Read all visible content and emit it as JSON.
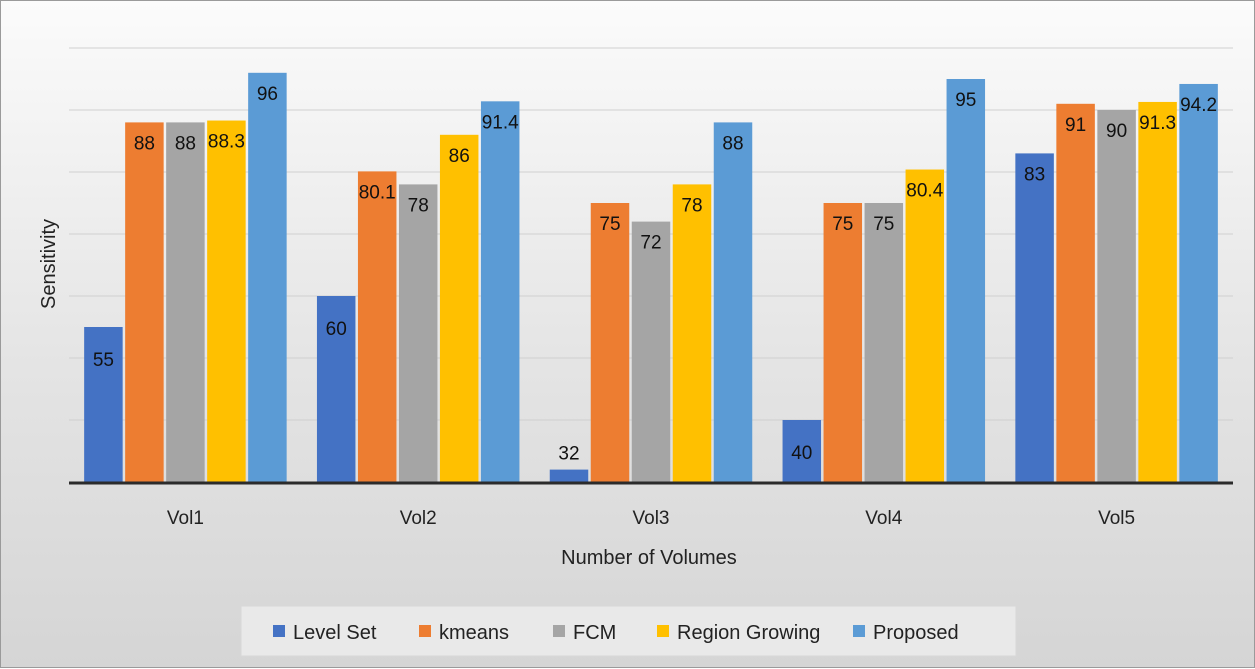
{
  "chart_data": {
    "type": "bar",
    "title": "",
    "xlabel": "Number of Volumes",
    "ylabel": "Sensitivity",
    "categories": [
      "Vol1",
      "Vol2",
      "Vol3",
      "Vol4",
      "Vol5"
    ],
    "ylim": [
      30,
      100
    ],
    "grid": true,
    "legend_position": "bottom",
    "series": [
      {
        "name": "Level Set",
        "color": "#4472C4",
        "values": [
          55,
          60,
          32,
          40,
          83
        ]
      },
      {
        "name": "kmeans",
        "color": "#ED7D31",
        "values": [
          88,
          80.1,
          75,
          75,
          91
        ]
      },
      {
        "name": "FCM",
        "color": "#A5A5A5",
        "values": [
          88,
          78,
          72,
          75,
          90
        ]
      },
      {
        "name": "Region Growing",
        "color": "#FFC000",
        "values": [
          88.3,
          86,
          78,
          80.4,
          91.3
        ]
      },
      {
        "name": "Proposed",
        "color": "#5B9BD5",
        "values": [
          96,
          91.4,
          88,
          95,
          94.2
        ]
      }
    ]
  }
}
